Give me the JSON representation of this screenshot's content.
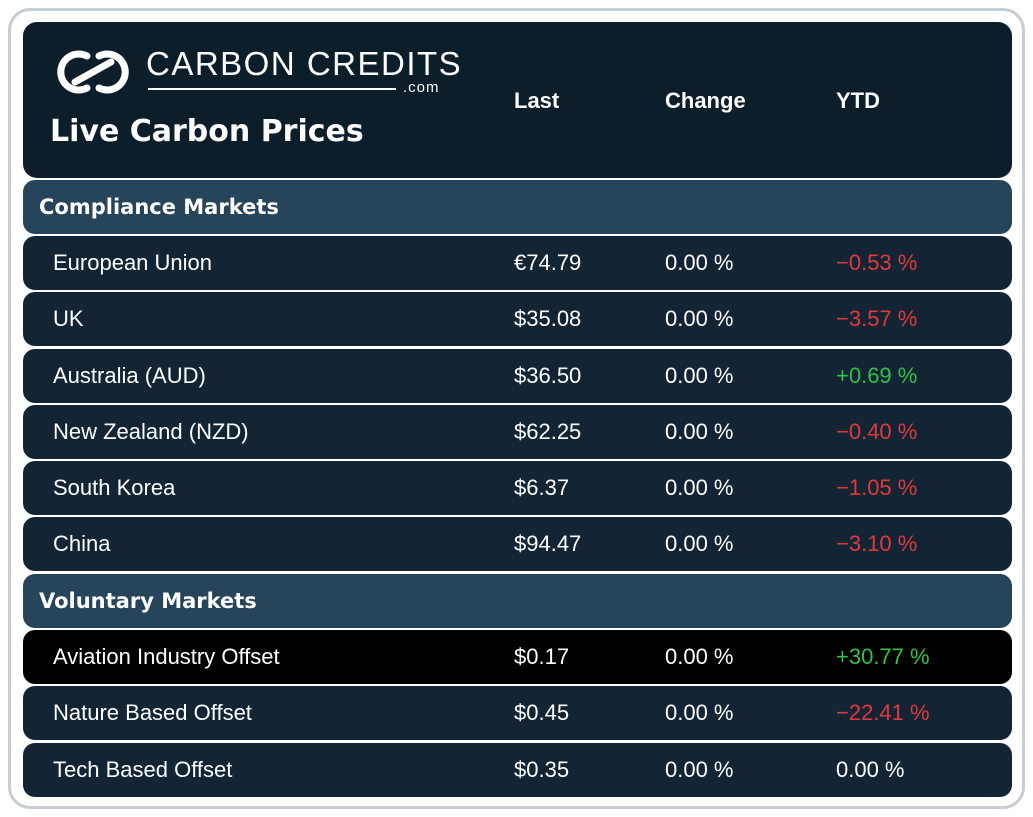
{
  "brand": {
    "logo_text": "CARBON CREDITS",
    "logo_suffix": ".com",
    "title": "Live Carbon Prices"
  },
  "columns": {
    "last": "Last",
    "change": "Change",
    "ytd": "YTD"
  },
  "colors": {
    "header_bg": "#0d1e2b",
    "section_bg": "#26445a",
    "row_bg": "#132535",
    "row_highlight_bg": "#000000",
    "negative": "#e0393c",
    "positive": "#2fc14a"
  },
  "sections": [
    {
      "label": "Compliance Markets",
      "rows": [
        {
          "name": "European Union",
          "last": "€74.79",
          "change": "0.00 %",
          "ytd": "−0.53 %",
          "trend": "neg"
        },
        {
          "name": "UK",
          "last": "$35.08",
          "change": "0.00 %",
          "ytd": "−3.57 %",
          "trend": "neg"
        },
        {
          "name": "Australia (AUD)",
          "last": "$36.50",
          "change": "0.00 %",
          "ytd": "+0.69 %",
          "trend": "pos"
        },
        {
          "name": "New Zealand (NZD)",
          "last": "$62.25",
          "change": "0.00 %",
          "ytd": "−0.40 %",
          "trend": "neg"
        },
        {
          "name": "South Korea",
          "last": "$6.37",
          "change": "0.00 %",
          "ytd": "−1.05 %",
          "trend": "neg"
        },
        {
          "name": "China",
          "last": "$94.47",
          "change": "0.00 %",
          "ytd": "−3.10 %",
          "trend": "neg"
        }
      ]
    },
    {
      "label": "Voluntary Markets",
      "rows": [
        {
          "name": "Aviation Industry Offset",
          "last": "$0.17",
          "change": "0.00 %",
          "ytd": "+30.77 %",
          "trend": "pos",
          "highlighted": true
        },
        {
          "name": "Nature Based Offset",
          "last": "$0.45",
          "change": "0.00 %",
          "ytd": "−22.41 %",
          "trend": "neg"
        },
        {
          "name": "Tech Based Offset",
          "last": "$0.35",
          "change": "0.00 %",
          "ytd": "0.00 %",
          "trend": "neu"
        }
      ]
    }
  ]
}
